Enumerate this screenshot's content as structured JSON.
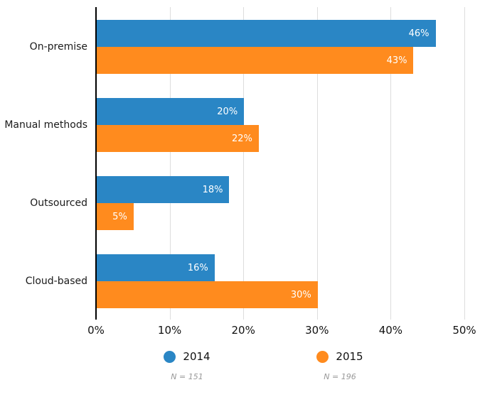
{
  "chart_data": {
    "type": "bar",
    "orientation": "horizontal",
    "categories": [
      "On-premise",
      "Manual methods",
      "Outsourced",
      "Cloud-based"
    ],
    "series": [
      {
        "name": "2014",
        "color": "#2A86C5",
        "n_label": "N = 151",
        "values": [
          46,
          20,
          18,
          16
        ]
      },
      {
        "name": "2015",
        "color": "#FF8B1E",
        "n_label": "N = 196",
        "values": [
          43,
          22,
          5,
          30
        ]
      }
    ],
    "value_suffix": "%",
    "xlim": [
      0,
      50
    ],
    "x_tick_values": [
      0,
      10,
      20,
      30,
      40,
      50
    ],
    "x_tick_labels": [
      "0%",
      "10%",
      "20%",
      "30%",
      "40%",
      "50%"
    ],
    "grid": true,
    "legend_position": "bottom"
  },
  "colors": {
    "gridline": "#dddddd",
    "axis": "#000000",
    "bar_value_text": "#ffffff",
    "category_text": "#1a1a1a",
    "n_text": "#999999"
  }
}
